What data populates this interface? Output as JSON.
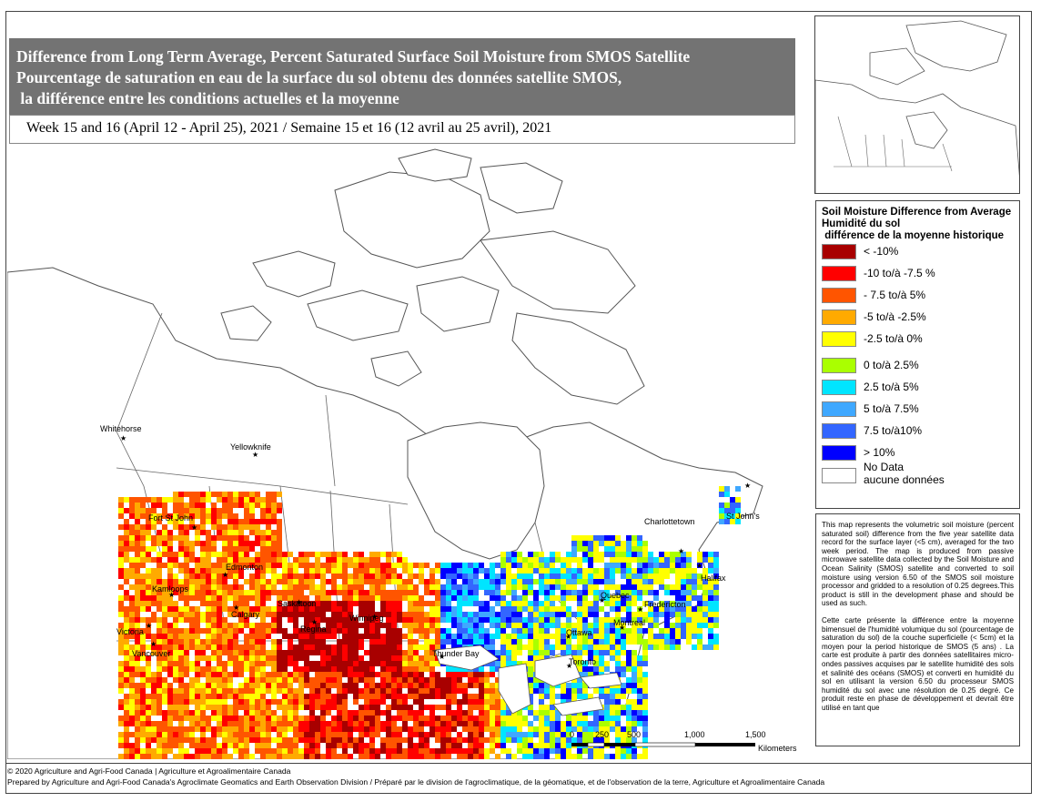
{
  "title": {
    "line1": "Difference from Long Term Average, Percent Saturated Surface Soil Moisture from SMOS Satellite",
    "line2": "Pourcentage de saturation en eau de la surface du sol obtenu des données satellite SMOS,",
    "line3": " la différence entre les conditions actuelles et la moyenne"
  },
  "subtitle": "Week 15 and 16 (April 12 - April 25), 2021 / Semaine 15 et 16 (12 avril au 25 avril), 2021",
  "legend": {
    "title_line1": "Soil Moisture Difference from Average",
    "title_line2": "Humidité du sol",
    "title_line3": " différence de la moyenne historique",
    "items": [
      {
        "label": "< -10%",
        "color": "#a80000"
      },
      {
        "label": "-10 to/à -7.5 %",
        "color": "#ff0000"
      },
      {
        "label": "- 7.5 to/à 5%",
        "color": "#ff5500"
      },
      {
        "label": "-5 to/à -2.5%",
        "color": "#ffaa00"
      },
      {
        "label": "-2.5 to/à 0%",
        "color": "#ffff00"
      },
      {
        "label": "0 to/à 2.5%",
        "color": "#aaff00"
      },
      {
        "label": "2.5 to/à 5%",
        "color": "#00e5ff"
      },
      {
        "label": "5 to/à 7.5%",
        "color": "#3fa8ff"
      },
      {
        "label": "7.5 to/à10%",
        "color": "#3366ff"
      },
      {
        "label": "> 10%",
        "color": "#0000ff"
      }
    ],
    "nodata_line1": "No Data",
    "nodata_line2": "aucune données",
    "nodata_color": "#ffffff"
  },
  "description": {
    "english": "This map represents the volumetric soil moisture (percent saturated soil) difference from the five year satellite data record for the surface layer (<5 cm), averaged for the two week period. The map is produced from passive microwave satellite data collected by the Soil Moisture and Ocean Salinity (SMOS) satellite and converted to soil moisture using version 6.50 of the SMOS soil moisture processor and gridded to a resolution of 0.25 degrees.This product is still in the development phase and should be used as such.",
    "french": "Cette carte présente la différence entre la moyenne bimensuel de l'humidité volumique du sol (pourcentage de saturation du sol) de la couche superficielle (< 5cm) et la moyen pour la period historique de SMOS (5 ans) . La carte est produite à partir des données satellitaires micro-ondes passives acquises par le satellite humidité des sols et salinité des océans (SMOS) et converti en humidité du sol en utilisant la version 6.50 du processeur SMOS humidité du sol avec une résolution de 0.25 degré. Ce produit reste en phase de développement et devrait être utilisé en tant que"
  },
  "cities": [
    {
      "name": "Whitehorse"
    },
    {
      "name": "Yellowknife"
    },
    {
      "name": "Fort St John"
    },
    {
      "name": "Edmonton"
    },
    {
      "name": "Kamloops"
    },
    {
      "name": "Calgary"
    },
    {
      "name": "Saskatoon"
    },
    {
      "name": "Regina"
    },
    {
      "name": "Winnipeg"
    },
    {
      "name": "Victoria"
    },
    {
      "name": "Vancouver"
    },
    {
      "name": "Thunder Bay"
    },
    {
      "name": "Ottawa"
    },
    {
      "name": "Montreal"
    },
    {
      "name": "Quebec"
    },
    {
      "name": "Toronto"
    },
    {
      "name": "Fredericton"
    },
    {
      "name": "Halifax"
    },
    {
      "name": "Charlottetown"
    },
    {
      "name": "St John's"
    }
  ],
  "scale": {
    "labels": [
      "0",
      "250",
      "500",
      "1,000",
      "1,500"
    ],
    "unit": "Kilometers"
  },
  "footer": {
    "line1": "© 2020 Agriculture and Agri-Food Canada | Agriculture et Agroalimentaire Canada",
    "line2": "Prepared by Agriculture and Agri-Food Canada's Agroclimate Geomatics and Earth Observation Division / Préparé par le division de l'agroclimatique, de la géomatique, et de l'observation de la terre, Agriculture et Agroalimentaire Canada"
  }
}
